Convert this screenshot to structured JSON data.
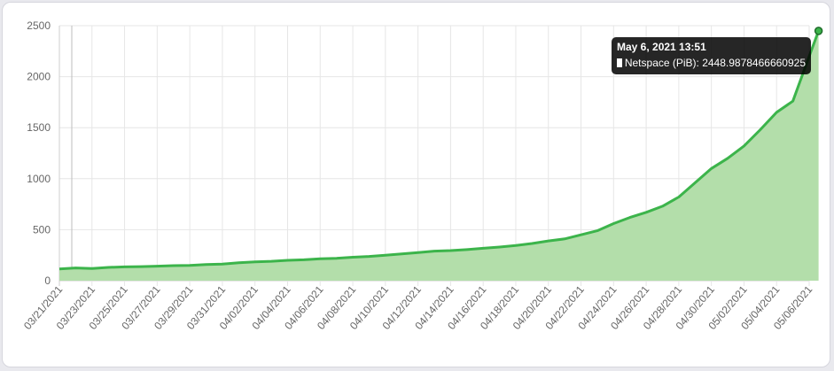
{
  "chart_data": {
    "type": "area",
    "series": [
      {
        "name": "Netspace (PiB)",
        "color": "#3cb44b",
        "fill": "#b3deaa",
        "points": [
          [
            "03/21/2021",
            115
          ],
          [
            "03/22/2021",
            125
          ],
          [
            "03/23/2021",
            120
          ],
          [
            "03/24/2021",
            130
          ],
          [
            "03/25/2021",
            135
          ],
          [
            "03/26/2021",
            138
          ],
          [
            "03/27/2021",
            142
          ],
          [
            "03/28/2021",
            148
          ],
          [
            "03/29/2021",
            150
          ],
          [
            "03/30/2021",
            158
          ],
          [
            "03/31/2021",
            163
          ],
          [
            "04/01/2021",
            175
          ],
          [
            "04/02/2021",
            185
          ],
          [
            "04/03/2021",
            190
          ],
          [
            "04/04/2021",
            200
          ],
          [
            "04/05/2021",
            205
          ],
          [
            "04/06/2021",
            215
          ],
          [
            "04/07/2021",
            220
          ],
          [
            "04/08/2021",
            230
          ],
          [
            "04/09/2021",
            238
          ],
          [
            "04/10/2021",
            250
          ],
          [
            "04/11/2021",
            262
          ],
          [
            "04/12/2021",
            275
          ],
          [
            "04/13/2021",
            290
          ],
          [
            "04/14/2021",
            295
          ],
          [
            "04/15/2021",
            305
          ],
          [
            "04/16/2021",
            318
          ],
          [
            "04/17/2021",
            330
          ],
          [
            "04/18/2021",
            345
          ],
          [
            "04/19/2021",
            365
          ],
          [
            "04/20/2021",
            390
          ],
          [
            "04/21/2021",
            410
          ],
          [
            "04/22/2021",
            450
          ],
          [
            "04/23/2021",
            490
          ],
          [
            "04/24/2021",
            560
          ],
          [
            "04/25/2021",
            620
          ],
          [
            "04/26/2021",
            670
          ],
          [
            "04/27/2021",
            730
          ],
          [
            "04/28/2021",
            820
          ],
          [
            "04/29/2021",
            960
          ],
          [
            "04/30/2021",
            1100
          ],
          [
            "05/01/2021",
            1200
          ],
          [
            "05/02/2021",
            1320
          ],
          [
            "05/03/2021",
            1480
          ],
          [
            "05/04/2021",
            1650
          ],
          [
            "05/05/2021",
            1760
          ],
          [
            "05/06/2021",
            2200
          ],
          [
            "05/06/2021 13:51",
            2448.9878466660925
          ]
        ]
      }
    ],
    "x_ticks": [
      "03/21/2021",
      "03/23/2021",
      "03/25/2021",
      "03/27/2021",
      "03/29/2021",
      "03/31/2021",
      "04/02/2021",
      "04/04/2021",
      "04/06/2021",
      "04/08/2021",
      "04/10/2021",
      "04/12/2021",
      "04/14/2021",
      "04/16/2021",
      "04/18/2021",
      "04/20/2021",
      "04/22/2021",
      "04/24/2021",
      "04/26/2021",
      "04/28/2021",
      "04/30/2021",
      "05/02/2021",
      "05/04/2021",
      "05/06/2021"
    ],
    "y_ticks": [
      0,
      500,
      1000,
      1500,
      2000,
      2500
    ],
    "ylim": [
      0,
      2500
    ],
    "grid": true,
    "tooltip": {
      "title": "May 6, 2021 13:51",
      "label": "Netspace (PiB): 2448.9878466660925"
    }
  }
}
